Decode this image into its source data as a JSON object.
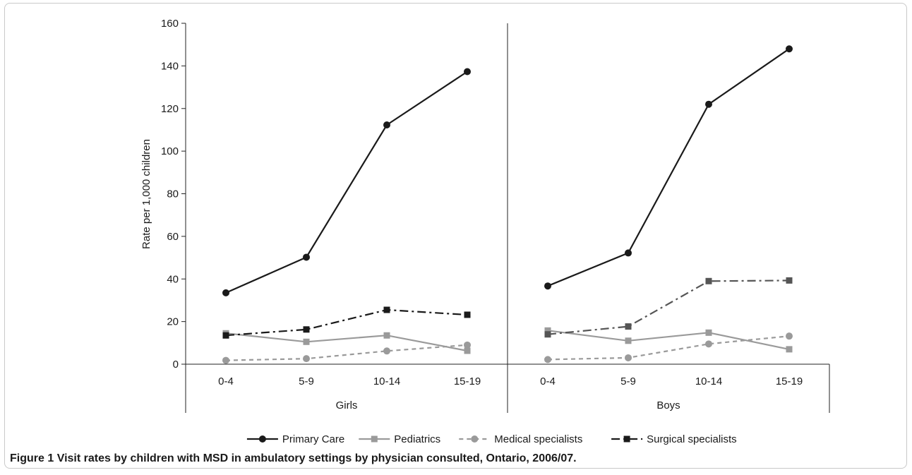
{
  "caption": {
    "label": "Figure 1",
    "text": "Visit rates by children with MSD in ambulatory settings by physician consulted, Ontario, 2006/07."
  },
  "chart_data": {
    "type": "line",
    "title": "",
    "ylabel": "Rate per 1,000 children",
    "ylim": [
      0,
      160
    ],
    "yticks": [
      0,
      20,
      40,
      60,
      80,
      100,
      120,
      140,
      160
    ],
    "groups": [
      "Girls",
      "Boys"
    ],
    "categories": [
      "0-4",
      "5-9",
      "10-14",
      "15-19"
    ],
    "grid": false,
    "legend_position": "bottom",
    "series": [
      {
        "name": "Primary Care",
        "color": "#1a1a1a",
        "dash": "solid",
        "marker": "circle",
        "values": {
          "Girls": [
            33.5,
            50.2,
            112.3,
            137.3
          ],
          "Boys": [
            36.7,
            52.2,
            122.0,
            148.0
          ]
        }
      },
      {
        "name": "Pediatrics",
        "color": "#9a9a9a",
        "dash": "solid",
        "marker": "square",
        "values": {
          "Girls": [
            14.5,
            10.5,
            13.5,
            6.3
          ],
          "Boys": [
            15.8,
            11.0,
            14.8,
            7.0
          ]
        }
      },
      {
        "name": "Medical specialists",
        "color": "#9a9a9a",
        "dash": "dashed",
        "marker": "circle",
        "values": {
          "Girls": [
            1.8,
            2.6,
            6.2,
            9.0
          ],
          "Boys": [
            2.2,
            3.0,
            9.5,
            13.2
          ]
        }
      },
      {
        "name": "Surgical specialists",
        "color": "#1a1a1a",
        "boys_color": "#555555",
        "dash": "dashdot",
        "marker": "square",
        "values": {
          "Girls": [
            13.5,
            16.3,
            25.5,
            23.2
          ],
          "Boys": [
            14.0,
            17.7,
            39.0,
            39.3
          ]
        }
      }
    ]
  }
}
